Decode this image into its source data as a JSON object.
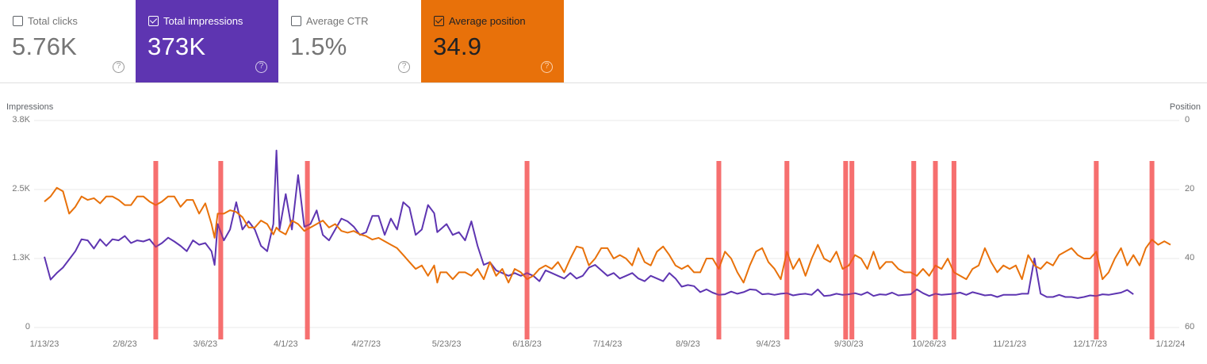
{
  "cards": [
    {
      "id": "clicks",
      "label": "Total clicks",
      "value": "5.76K",
      "checked": false
    },
    {
      "id": "impressions",
      "label": "Total impressions",
      "value": "373K",
      "checked": true,
      "color": "#5e35b1"
    },
    {
      "id": "ctr",
      "label": "Average CTR",
      "value": "1.5%",
      "checked": false
    },
    {
      "id": "position",
      "label": "Average position",
      "value": "34.9",
      "checked": true,
      "color": "#e8710a"
    }
  ],
  "help_icon": "?",
  "chart_data": {
    "type": "line",
    "title": "",
    "ylabel": "Impressions",
    "y2label": "Position",
    "xlabel": "",
    "ylim": [
      0,
      3800
    ],
    "y2lim": [
      0,
      60
    ],
    "y2_inverted": true,
    "yticks": [
      "0",
      "1.3K",
      "2.5K",
      "3.8K"
    ],
    "y2ticks": [
      "60",
      "40",
      "20",
      "0"
    ],
    "xticks": [
      "1/13/23",
      "2/8/23",
      "3/6/23",
      "4/1/23",
      "4/27/23",
      "5/23/23",
      "6/18/23",
      "7/14/23",
      "8/9/23",
      "9/4/23",
      "9/30/23",
      "10/26/23",
      "11/21/23",
      "12/17/23",
      "1/12/24"
    ],
    "grid": true,
    "legend": "none",
    "annotations": {
      "marker_color": "#f28b8b",
      "strong_marker_color": "#ff2a2a",
      "marker_days": [
        36,
        57,
        85,
        156,
        218,
        240,
        259,
        261,
        281,
        288,
        294,
        340,
        358
      ]
    },
    "series": [
      {
        "name": "Impressions",
        "axis": "left",
        "color": "#5e35b1",
        "x_days": [
          0,
          2,
          4,
          6,
          8,
          10,
          12,
          14,
          16,
          18,
          20,
          22,
          24,
          26,
          28,
          30,
          32,
          34,
          36,
          38,
          40,
          42,
          44,
          46,
          48,
          50,
          52,
          54,
          55,
          56,
          58,
          60,
          62,
          64,
          66,
          68,
          70,
          72,
          74,
          75,
          76,
          78,
          80,
          82,
          84,
          86,
          88,
          90,
          92,
          94,
          96,
          98,
          100,
          102,
          104,
          106,
          108,
          110,
          112,
          114,
          116,
          118,
          120,
          122,
          124,
          126,
          127,
          128,
          130,
          132,
          134,
          136,
          138,
          140,
          142,
          144,
          146,
          148,
          150,
          152,
          154,
          156,
          158,
          160,
          162,
          164,
          166,
          168,
          170,
          172,
          174,
          176,
          178,
          180,
          182,
          184,
          186,
          188,
          190,
          192,
          194,
          196,
          198,
          200,
          202,
          204,
          206,
          208,
          210,
          212,
          214,
          216,
          218,
          220,
          222,
          224,
          226,
          228,
          230,
          232,
          234,
          236,
          238,
          240,
          242,
          244,
          246,
          248,
          250,
          252,
          254,
          256,
          258,
          260,
          262,
          264,
          266,
          268,
          270,
          272,
          274,
          276,
          278,
          280,
          282,
          284,
          286,
          288,
          290,
          292,
          294,
          296,
          298,
          300,
          302,
          304,
          306,
          308,
          310,
          312,
          314,
          316,
          318,
          320,
          322,
          324,
          326,
          328,
          330,
          332,
          334,
          336,
          338,
          340,
          342,
          344,
          346,
          348,
          350,
          352,
          354,
          356,
          358,
          360,
          362,
          364
        ],
        "values": [
          1300,
          880,
          1000,
          1100,
          1250,
          1400,
          1620,
          1600,
          1450,
          1620,
          1500,
          1620,
          1600,
          1680,
          1550,
          1600,
          1580,
          1620,
          1480,
          1550,
          1650,
          1580,
          1500,
          1400,
          1600,
          1520,
          1550,
          1400,
          1150,
          1900,
          1600,
          1800,
          2300,
          1800,
          1950,
          1800,
          1500,
          1400,
          1900,
          3250,
          1800,
          2450,
          1800,
          2800,
          1850,
          1900,
          2150,
          1700,
          1600,
          1800,
          2000,
          1950,
          1850,
          1700,
          1750,
          2050,
          2050,
          1700,
          2000,
          1800,
          2300,
          2200,
          1700,
          1800,
          2250,
          2100,
          1750,
          1800,
          1900,
          1700,
          1750,
          1600,
          1950,
          1500,
          1150,
          1200,
          1050,
          1000,
          950,
          1000,
          950,
          1000,
          950,
          850,
          1050,
          1000,
          950,
          900,
          1000,
          900,
          950,
          1100,
          1150,
          1050,
          950,
          1000,
          900,
          950,
          1000,
          900,
          850,
          950,
          900,
          850,
          1000,
          900,
          750,
          780,
          760,
          650,
          700,
          640,
          600,
          610,
          660,
          620,
          650,
          700,
          690,
          610,
          620,
          600,
          620,
          630,
          590,
          610,
          620,
          600,
          700,
          580,
          590,
          620,
          600,
          610,
          630,
          600,
          650,
          580,
          610,
          600,
          640,
          590,
          600,
          610,
          700,
          630,
          580,
          620,
          600,
          610,
          620,
          640,
          600,
          650,
          620,
          590,
          600,
          560,
          600,
          600,
          600,
          620,
          620,
          1270,
          620,
          560,
          560,
          600,
          560,
          560,
          540,
          560,
          590,
          580,
          610,
          600,
          620,
          640,
          690,
          610
        ],
        "values_note": "approximate daily impressions read from pixel positions"
      },
      {
        "name": "Position",
        "axis": "right",
        "color": "#e8710a",
        "x_days": [
          0,
          2,
          4,
          6,
          8,
          10,
          12,
          14,
          16,
          18,
          20,
          22,
          24,
          26,
          28,
          30,
          32,
          34,
          36,
          38,
          40,
          42,
          44,
          46,
          48,
          50,
          52,
          54,
          55,
          56,
          58,
          60,
          62,
          64,
          66,
          68,
          70,
          72,
          74,
          75,
          76,
          78,
          80,
          82,
          84,
          86,
          88,
          90,
          92,
          94,
          96,
          98,
          100,
          102,
          104,
          106,
          108,
          110,
          112,
          114,
          116,
          118,
          120,
          122,
          124,
          126,
          127,
          128,
          130,
          132,
          134,
          136,
          138,
          140,
          142,
          144,
          146,
          148,
          150,
          152,
          154,
          156,
          158,
          160,
          162,
          164,
          166,
          168,
          170,
          172,
          174,
          176,
          178,
          180,
          182,
          184,
          186,
          188,
          190,
          192,
          194,
          196,
          198,
          200,
          202,
          204,
          206,
          208,
          210,
          212,
          214,
          216,
          218,
          220,
          222,
          224,
          226,
          228,
          230,
          232,
          234,
          236,
          238,
          240,
          242,
          244,
          246,
          248,
          250,
          252,
          254,
          256,
          258,
          260,
          262,
          264,
          266,
          268,
          270,
          272,
          274,
          276,
          278,
          280,
          282,
          284,
          286,
          288,
          290,
          292,
          294,
          296,
          298,
          300,
          302,
          304,
          306,
          308,
          310,
          312,
          314,
          316,
          318,
          320,
          322,
          324,
          326,
          328,
          330,
          332,
          334,
          336,
          338,
          340,
          342,
          344,
          346,
          348,
          350,
          352,
          354,
          356,
          358,
          360,
          362,
          364
        ],
        "values": [
          23.5,
          22,
          19.5,
          20.5,
          27,
          25,
          22,
          23,
          22.5,
          24,
          22,
          22,
          23,
          24.5,
          24.5,
          22,
          22,
          23.5,
          24.5,
          23.5,
          22,
          22,
          25,
          23,
          23,
          27,
          24,
          30,
          34,
          27,
          27,
          26,
          26.5,
          28,
          31,
          31,
          29,
          30,
          33,
          31,
          32,
          33,
          29,
          30,
          32,
          31,
          30,
          29,
          31,
          30,
          32,
          32.5,
          32,
          33,
          33.5,
          34.5,
          34,
          35,
          36,
          37,
          39,
          41,
          43,
          42,
          45,
          42,
          47,
          44,
          44,
          46,
          44,
          44,
          45,
          43,
          46,
          41,
          45,
          43,
          47,
          43,
          44,
          46,
          45,
          43,
          42,
          43,
          41,
          44,
          40,
          36.5,
          37,
          42,
          40,
          37,
          37,
          40,
          39,
          40,
          42,
          37,
          41,
          42,
          38,
          36.5,
          39,
          42,
          43,
          42,
          44,
          44,
          40,
          40,
          43,
          38,
          40,
          44,
          47,
          42,
          38,
          37,
          41,
          43,
          46,
          38,
          43,
          40,
          45,
          40,
          36,
          40,
          41,
          38,
          43,
          42,
          39,
          40,
          43,
          38,
          43,
          41,
          41,
          43,
          44,
          44,
          45,
          43,
          45,
          42,
          43,
          40,
          44,
          45,
          46,
          43,
          42,
          37,
          41,
          44,
          42,
          43,
          42,
          46,
          39,
          42,
          43,
          41,
          42,
          39,
          38,
          37,
          39,
          40,
          40,
          38,
          46,
          44,
          40,
          37,
          42,
          39,
          42,
          37,
          34.5,
          36,
          35,
          36,
          37,
          35,
          38,
          33,
          32.5,
          33
        ],
        "values_note": "approximate average position read from pixel positions"
      }
    ]
  }
}
